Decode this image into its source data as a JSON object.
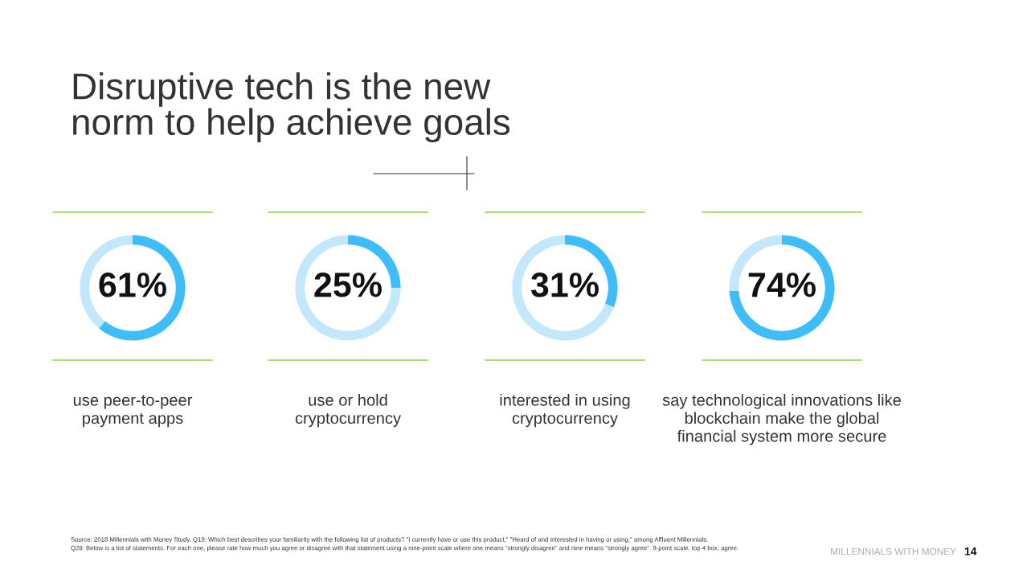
{
  "chart_data": [
    {
      "type": "donut",
      "title": "Disruptive tech is the new\nnorm to help achieve goals",
      "categories": [
        null,
        null
      ],
      "values": [
        61,
        39
      ],
      "colors": [
        "#3fbdf8",
        "#c4e8fb"
      ],
      "value_labels": [
        "61%",
        null
      ],
      "annotations": [
        "use peer-to-peer\npayment apps",
        "Source: 2018 Millennials with Money Study. Q19: Which best describes your familiarity with the following list of products? \"I currently have or use this product,\" \"Heard of and interested in having or using,\" among Affluent Millennials.\nQ28: Below is a list of statements. For each one, please rate how much you agree or disagree with that statement using a nine-point scale where one means \"strongly disagree\" and nine means \"strongly agree\". 9-point scale, top 4 box, agree.",
        "MILLENNIALS WITH MONEY",
        "14"
      ]
    },
    {
      "type": "donut",
      "categories": [
        null,
        null
      ],
      "values": [
        25,
        75
      ],
      "colors": [
        "#3fbdf8",
        "#c4e8fb"
      ],
      "value_labels": [
        "25%",
        null
      ],
      "annotations": [
        "use or hold\ncryptocurrency"
      ]
    },
    {
      "type": "donut",
      "categories": [
        null,
        null
      ],
      "values": [
        31,
        69
      ],
      "colors": [
        "#3fbdf8",
        "#c4e8fb"
      ],
      "value_labels": [
        "31%",
        null
      ],
      "annotations": [
        "interested in using\ncryptocurrency"
      ]
    },
    {
      "type": "donut",
      "categories": [
        null,
        null
      ],
      "values": [
        74,
        26
      ],
      "colors": [
        "#3fbdf8",
        "#c4e8fb"
      ],
      "value_labels": [
        "74%",
        null
      ],
      "annotations": [
        "say technological innovations like\nblockchain make the global\nfinancial system more secure"
      ]
    }
  ]
}
